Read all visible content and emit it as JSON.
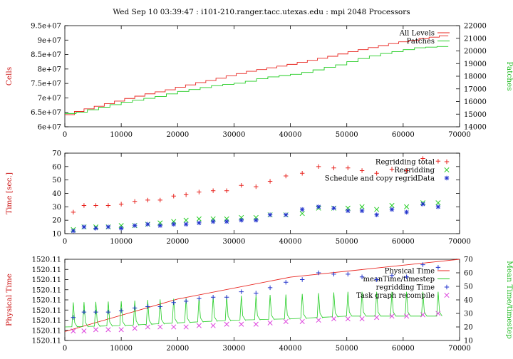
{
  "title": "Wed Sep 10 03:39:47 : i101-210.ranger.tacc.utexas.edu : mpi 2048 Processors",
  "colors": {
    "red": "#e8241f",
    "green": "#22cc22",
    "blue": "#2233cc",
    "magenta": "#dd44dd",
    "ylabel_red": "#cc1111",
    "ylabel_green": "#22bb22"
  },
  "chart_data": [
    {
      "type": "line",
      "ylabel": "Cells",
      "y2label": "Patches",
      "xlim": [
        0,
        70000
      ],
      "ylim": [
        60000000,
        95000000
      ],
      "y2lim": [
        14000,
        22000
      ],
      "xticks": [
        "0",
        "10000",
        "20000",
        "30000",
        "40000",
        "50000",
        "60000",
        "70000"
      ],
      "yticks": [
        "6e+07",
        "6.5e+07",
        "7e+07",
        "7.5e+07",
        "8e+07",
        "8.5e+07",
        "9e+07",
        "9.5e+07"
      ],
      "y2ticks": [
        "14000",
        "15000",
        "16000",
        "17000",
        "18000",
        "19000",
        "20000",
        "21000",
        "22000"
      ],
      "legend_position": "top-right",
      "series": [
        {
          "name": "All Levels",
          "axis": "left",
          "color": "#e8241f",
          "style": "step",
          "x": [
            0,
            1700,
            3400,
            5200,
            7000,
            8800,
            10600,
            12400,
            14200,
            16000,
            17800,
            19600,
            21400,
            23200,
            25000,
            26800,
            28600,
            30400,
            32200,
            34000,
            35800,
            37600,
            39400,
            41200,
            43000,
            44800,
            46600,
            48400,
            50200,
            52000,
            53800,
            55600,
            57400,
            59200,
            61000,
            62800,
            64600,
            66400,
            68000
          ],
          "y": [
            64200000,
            65300000,
            66200000,
            67100000,
            68000000,
            68900000,
            69800000,
            70600000,
            71400000,
            72100000,
            72800000,
            73700000,
            74500000,
            75300000,
            76000000,
            76800000,
            77600000,
            78400000,
            79200000,
            79800000,
            80400000,
            81000000,
            81600000,
            82300000,
            83000000,
            83700000,
            84400000,
            85200000,
            86000000,
            86700000,
            87400000,
            88100000,
            88800000,
            89400000,
            89900000,
            90500000,
            91000000,
            91500000,
            91500000
          ]
        },
        {
          "name": "Patches",
          "axis": "right",
          "color": "#22cc22",
          "style": "step",
          "x": [
            0,
            2000,
            4000,
            6000,
            8000,
            10000,
            12000,
            14000,
            16000,
            18000,
            20000,
            22000,
            24000,
            26000,
            28000,
            30000,
            32000,
            34000,
            36000,
            38000,
            40000,
            42000,
            44000,
            46000,
            48000,
            50000,
            52000,
            54000,
            56000,
            58000,
            60000,
            62000,
            64000,
            66000,
            68000
          ],
          "y": [
            15050,
            15150,
            15350,
            15550,
            15750,
            15950,
            16100,
            16250,
            16400,
            16600,
            16800,
            16950,
            17100,
            17250,
            17350,
            17450,
            17600,
            17800,
            17950,
            18050,
            18150,
            18300,
            18500,
            18700,
            18900,
            19150,
            19400,
            19600,
            19800,
            19950,
            20100,
            20250,
            20300,
            20350,
            20350
          ]
        }
      ]
    },
    {
      "type": "scatter",
      "ylabel": "Time [sec.]",
      "xlim": [
        0,
        70000
      ],
      "ylim": [
        10,
        70
      ],
      "xticks": [
        "0",
        "10000",
        "20000",
        "30000",
        "40000",
        "50000",
        "60000",
        "70000"
      ],
      "yticks": [
        "10",
        "20",
        "30",
        "40",
        "50",
        "60",
        "70"
      ],
      "legend_position": "top-right",
      "series": [
        {
          "name": "Regridding total",
          "marker": "plus",
          "color": "#e8241f",
          "x": [
            1500,
            3400,
            5500,
            7700,
            10000,
            12400,
            14700,
            16900,
            19300,
            21500,
            23800,
            26300,
            28700,
            31300,
            33900,
            36400,
            39200,
            42100,
            45000,
            47700,
            50200,
            52700,
            55300,
            58000,
            60600,
            63500,
            66200
          ],
          "y": [
            26,
            31,
            31,
            31,
            32,
            34,
            35,
            35,
            38,
            39,
            41,
            42,
            42,
            46,
            45,
            49,
            53,
            55,
            60,
            59,
            59,
            57,
            55,
            58,
            57,
            66,
            64
          ]
        },
        {
          "name": "Regridding",
          "marker": "x",
          "color": "#22cc22",
          "x": [
            1500,
            3400,
            5500,
            7700,
            10000,
            12400,
            14700,
            16900,
            19300,
            21500,
            23800,
            26300,
            28700,
            31300,
            33900,
            36400,
            39200,
            42100,
            45000,
            47700,
            50200,
            52700,
            55300,
            58000,
            60600,
            63500,
            66200
          ],
          "y": [
            13,
            15,
            15,
            15,
            16,
            16,
            17,
            18,
            19,
            20,
            21,
            21,
            21,
            22,
            22,
            24,
            24,
            25,
            29,
            29,
            29,
            30,
            28,
            31,
            30,
            33,
            33
          ]
        },
        {
          "name": "Schedule and copy regridData",
          "marker": "star",
          "color": "#2233cc",
          "x": [
            1500,
            3400,
            5500,
            7700,
            10000,
            12400,
            14700,
            16900,
            19300,
            21500,
            23800,
            26300,
            28700,
            31300,
            33900,
            36400,
            39200,
            42100,
            45000,
            47700,
            50200,
            52700,
            55300,
            58000,
            60600,
            63500,
            66200
          ],
          "y": [
            12,
            15,
            14,
            15,
            14,
            16,
            17,
            16,
            17,
            17,
            18,
            19,
            19,
            20,
            20,
            24,
            24,
            28,
            30,
            29,
            27,
            27,
            24,
            28,
            26,
            32,
            30
          ]
        }
      ]
    },
    {
      "type": "line",
      "ylabel": "Physical Time",
      "y2label": "Mean Time/timestep",
      "xlim": [
        0,
        70000
      ],
      "ylim": [
        0,
        1
      ],
      "y2lim": [
        10,
        70
      ],
      "xticks": [
        "0",
        "10000",
        "20000",
        "30000",
        "40000",
        "50000",
        "60000",
        "70000"
      ],
      "yticks": [
        "1520.11",
        "1520.11",
        "1520.11",
        "1520.11",
        "1520.11",
        "1520.11",
        "1520.11",
        "1520.11",
        "1520.11"
      ],
      "y2ticks": [
        "10",
        "20",
        "30",
        "40",
        "50",
        "60",
        "70"
      ],
      "legend_position": "top-right",
      "series": [
        {
          "name": "Physical Time",
          "axis": "left",
          "color": "#e8241f",
          "style": "line",
          "x": [
            0,
            20000,
            40000,
            70000
          ],
          "y": [
            0.11,
            0.51,
            0.78,
            1.0
          ]
        },
        {
          "name": "meanTime/timestep",
          "axis": "right",
          "color": "#22cc22",
          "style": "spiky-line",
          "baseline": [
            [
              0,
              20
            ],
            [
              10000,
              21
            ],
            [
              20000,
              23
            ],
            [
              30000,
              25
            ],
            [
              40000,
              26
            ],
            [
              50000,
              28
            ],
            [
              66000,
              28
            ]
          ],
          "peak": 18
        },
        {
          "name": "regridding Time",
          "axis": "right",
          "marker": "plus",
          "color": "#2233cc",
          "x": [
            1500,
            3400,
            5500,
            7700,
            10000,
            12400,
            14700,
            16900,
            19300,
            21500,
            23800,
            26300,
            28700,
            31300,
            33900,
            36400,
            39200,
            42100,
            45000,
            47700,
            50200,
            52700,
            55300,
            58000,
            60600,
            63500,
            66200
          ],
          "y": [
            27,
            31,
            31,
            31,
            32,
            34,
            35,
            35,
            38,
            39,
            41,
            42,
            42,
            46,
            45,
            49,
            53,
            55,
            60,
            59,
            59,
            57,
            55,
            58,
            57,
            66,
            64
          ]
        },
        {
          "name": "Task graph recompile",
          "axis": "right",
          "marker": "x",
          "color": "#dd44dd",
          "x": [
            1500,
            3400,
            5500,
            7700,
            10000,
            12400,
            14700,
            16900,
            19300,
            21500,
            23800,
            26300,
            28700,
            31300,
            33900,
            36400,
            39200,
            42100,
            45000,
            47700,
            50200,
            52700,
            55300,
            58000,
            60600,
            63500,
            66200
          ],
          "y": [
            17,
            17,
            18,
            18,
            18,
            19,
            20,
            20,
            20,
            20,
            21,
            21,
            22,
            22,
            22,
            23,
            24,
            24,
            25,
            26,
            26,
            26,
            27,
            28,
            28,
            29,
            30
          ]
        }
      ]
    }
  ]
}
